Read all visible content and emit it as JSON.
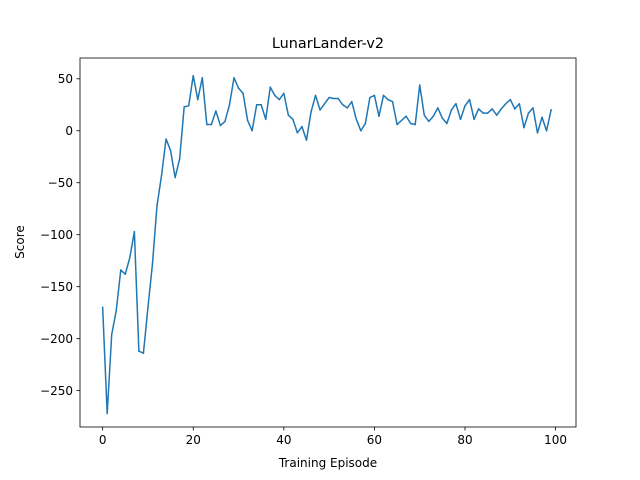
{
  "chart_data": {
    "type": "line",
    "title": "LunarLander-v2",
    "xlabel": "Training Episode",
    "ylabel": "Score",
    "xlim": [
      -5,
      104.5
    ],
    "ylim": [
      -285,
      70
    ],
    "xticks": [
      0,
      20,
      40,
      60,
      80,
      100
    ],
    "yticks": [
      50,
      0,
      -50,
      -100,
      -150,
      -200,
      -250
    ],
    "ytick_labels": [
      "50",
      "0",
      "−50",
      "−100",
      "−150",
      "−200",
      "−250"
    ],
    "grid": false,
    "line_color": "#1f77b4",
    "series": [
      {
        "x": [
          0,
          1,
          2,
          3,
          4,
          5,
          6,
          7,
          8,
          9,
          10,
          11,
          12,
          13,
          14,
          15,
          16,
          17,
          18,
          19,
          20,
          21,
          22,
          23,
          24,
          25,
          26,
          27,
          28,
          29,
          30,
          31,
          32,
          33,
          34,
          35,
          36,
          37,
          38,
          39,
          40,
          41,
          42,
          43,
          44,
          45,
          46,
          47,
          48,
          49,
          50,
          51,
          52,
          53,
          54,
          55,
          56,
          57,
          58,
          59,
          60,
          61,
          62,
          63,
          64,
          65,
          66,
          67,
          68,
          69,
          70,
          71,
          72,
          73,
          74,
          75,
          76,
          77,
          78,
          79,
          80,
          81,
          82,
          83,
          84,
          85,
          86,
          87,
          88,
          89,
          90,
          91,
          92,
          93,
          94,
          95,
          96,
          97,
          98,
          99
        ],
        "values": [
          -170,
          -272,
          -196,
          -173,
          -134,
          -138,
          -122,
          -97,
          -212,
          -214,
          -170,
          -128,
          -72,
          -43,
          -8,
          -19,
          -45,
          -27,
          23,
          24,
          53,
          30,
          51,
          6,
          6,
          19,
          5,
          9,
          25,
          51,
          41,
          36,
          10,
          0,
          25,
          25,
          11,
          42,
          34,
          30,
          36,
          15,
          11,
          -2,
          4,
          -9,
          18,
          34,
          20,
          26,
          32,
          31,
          31,
          25,
          22,
          28,
          11,
          0,
          7,
          32,
          34,
          14,
          34,
          30,
          28,
          6,
          10,
          14,
          7,
          6,
          44,
          15,
          9,
          14,
          22,
          12,
          7,
          20,
          26,
          11,
          24,
          30,
          11,
          21,
          17,
          17,
          21,
          15,
          21,
          26,
          30,
          21,
          26,
          3,
          17,
          22,
          -2,
          13,
          0,
          20
        ]
      }
    ]
  }
}
